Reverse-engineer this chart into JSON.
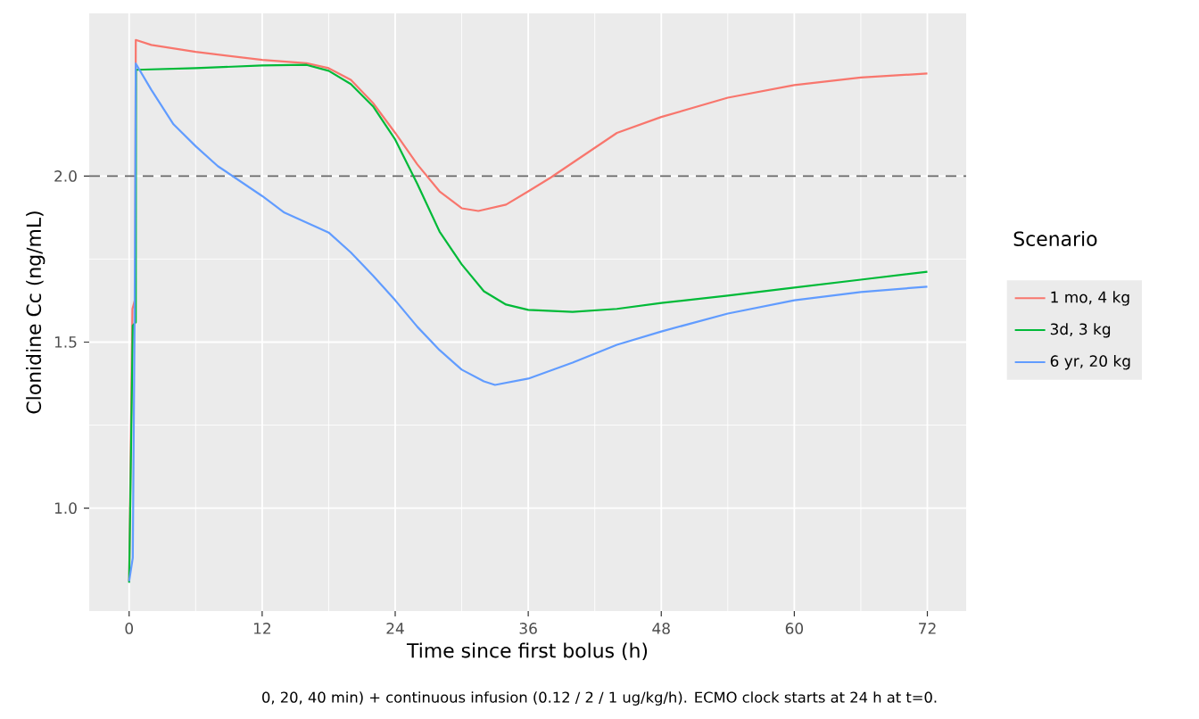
{
  "chart_data": {
    "type": "line",
    "xlabel": "Time since first bolus (h)",
    "ylabel": "Clonidine Cc (ng/mL)",
    "legend_title": "Scenario",
    "annotations": [
      "0, 20, 40 min) + continuous infusion (0.12 / 2 / 1 ug/kg/h). ECMO clock starts at 24 h at t=0."
    ],
    "xlim": [
      -3.6,
      75.5
    ],
    "ylim": [
      0.69,
      2.49
    ],
    "xticks": [
      0,
      12,
      24,
      36,
      48,
      60,
      72
    ],
    "yticks": [
      {
        "value": 1.0,
        "label": "1.0"
      },
      {
        "value": 1.5,
        "label": "1.5"
      },
      {
        "value": 2.0,
        "label": "2.0"
      }
    ],
    "grid": true,
    "legend": "right",
    "line_style": "solid",
    "marker": "none",
    "ref_lines": [
      {
        "axis": "y",
        "value": 2.0,
        "color": "#666666",
        "line_style": "dashed"
      }
    ],
    "series": [
      {
        "name": "1 mo, 4 kg",
        "color": "#F8766D",
        "x": [
          0,
          0.3,
          0.55,
          0.6,
          2,
          6,
          12,
          16,
          18,
          20,
          22,
          24,
          26,
          28,
          30,
          31.5,
          34,
          36,
          38,
          40,
          44,
          48,
          54,
          60,
          66,
          72
        ],
        "values": [
          0.78,
          1.6,
          1.63,
          2.41,
          2.395,
          2.374,
          2.35,
          2.34,
          2.325,
          2.29,
          2.22,
          2.13,
          2.035,
          1.954,
          1.903,
          1.895,
          1.914,
          1.954,
          1.995,
          2.04,
          2.13,
          2.178,
          2.236,
          2.274,
          2.297,
          2.309
        ]
      },
      {
        "name": "3d, 3 kg",
        "color": "#00BA38",
        "x": [
          0,
          0.33,
          0.6,
          0.62,
          6,
          12,
          16,
          18,
          20,
          22,
          24,
          26,
          28,
          30,
          32,
          34,
          36,
          40,
          44,
          48,
          54,
          60,
          66,
          72
        ],
        "values": [
          0.775,
          1.55,
          1.56,
          2.32,
          2.325,
          2.333,
          2.335,
          2.317,
          2.277,
          2.21,
          2.11,
          1.976,
          1.833,
          1.734,
          1.653,
          1.613,
          1.597,
          1.591,
          1.6,
          1.618,
          1.64,
          1.664,
          1.688,
          1.712
        ]
      },
      {
        "name": "6 yr, 20 kg",
        "color": "#619CFF",
        "x": [
          0,
          0.33,
          0.5,
          0.6,
          2,
          4,
          6,
          8,
          12,
          14,
          16,
          18,
          20,
          22,
          24,
          26,
          28,
          30,
          32,
          33,
          36,
          40,
          44,
          48,
          54,
          60,
          66,
          72
        ],
        "values": [
          0.78,
          0.85,
          1.59,
          2.339,
          2.26,
          2.156,
          2.09,
          2.03,
          1.94,
          1.89,
          1.86,
          1.83,
          1.77,
          1.7,
          1.626,
          1.546,
          1.476,
          1.417,
          1.382,
          1.371,
          1.39,
          1.438,
          1.492,
          1.532,
          1.586,
          1.626,
          1.651,
          1.667
        ]
      }
    ]
  }
}
